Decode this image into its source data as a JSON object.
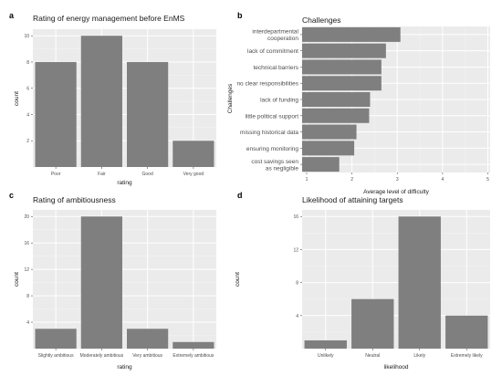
{
  "chart_data": [
    {
      "panel": "a",
      "type": "bar",
      "title": "Rating of energy management before EnMS",
      "xlabel": "rating",
      "ylabel": "count",
      "categories": [
        "Poor",
        "Fair",
        "Good",
        "Very good"
      ],
      "values": [
        8,
        10,
        8,
        2
      ],
      "ylim": [
        0,
        10.5
      ],
      "yticks": [
        2,
        4,
        6,
        8,
        10
      ],
      "orientation": "vertical",
      "grid": true,
      "bar_color": "#7f7f7f",
      "panel_bg": "#ebebeb"
    },
    {
      "panel": "b",
      "type": "bar",
      "title": "Challenges",
      "xlabel": "Average level of difficulty",
      "ylabel": "Challenges",
      "categories": [
        [
          "interdepartmental",
          "cooperation"
        ],
        [
          "lack of commitment"
        ],
        [
          "technical barriers"
        ],
        [
          "no clear responsibilities"
        ],
        [
          "lack of funding"
        ],
        [
          "little political support"
        ],
        [
          "missing historical data"
        ],
        [
          "ensuring monitoring"
        ],
        [
          "cost savings seen",
          "as negligible"
        ]
      ],
      "values": [
        3.07,
        2.75,
        2.65,
        2.65,
        2.4,
        2.38,
        2.1,
        2.05,
        1.72
      ],
      "xlim": [
        0.9,
        5.05
      ],
      "xticks": [
        1,
        2,
        3,
        4,
        5
      ],
      "orientation": "horizontal",
      "grid": true,
      "bar_color": "#7f7f7f",
      "panel_bg": "#ebebeb"
    },
    {
      "panel": "c",
      "type": "bar",
      "title": "Rating of ambitiousness",
      "xlabel": "rating",
      "ylabel": "count",
      "categories": [
        "Slightly ambitious",
        "Moderately ambitious",
        "Very ambitious",
        "Extremely ambitious"
      ],
      "values": [
        3,
        20,
        3,
        1
      ],
      "ylim": [
        0,
        21
      ],
      "yticks": [
        4,
        8,
        12,
        16,
        20
      ],
      "orientation": "vertical",
      "grid": true,
      "bar_color": "#7f7f7f",
      "panel_bg": "#ebebeb"
    },
    {
      "panel": "d",
      "type": "bar",
      "title": "Likelihood of attaining targets",
      "xlabel": "likelihood",
      "ylabel": "count",
      "categories": [
        "Unlikely",
        "Neutral",
        "Likely",
        "Extremely likely"
      ],
      "values": [
        1,
        6,
        16,
        4
      ],
      "ylim": [
        0,
        16.8
      ],
      "yticks": [
        4,
        8,
        12,
        16
      ],
      "orientation": "vertical",
      "grid": true,
      "bar_color": "#7f7f7f",
      "panel_bg": "#ebebeb"
    }
  ]
}
